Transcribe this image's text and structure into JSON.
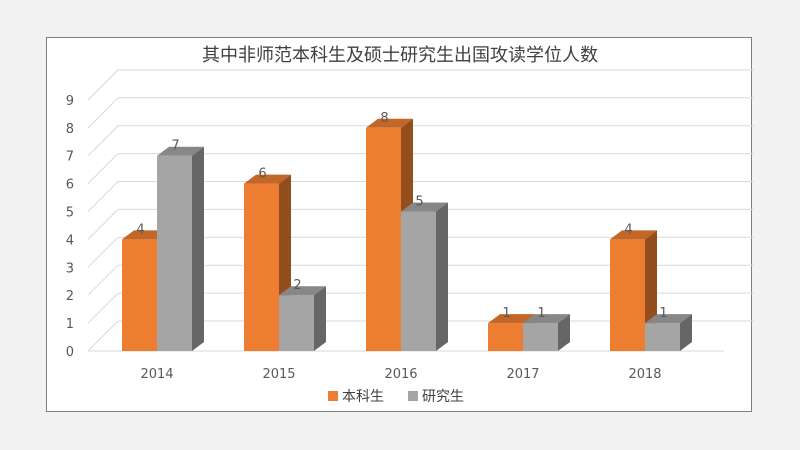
{
  "chart_data": {
    "type": "bar",
    "title": "其中非师范本科生及硕士研究生出国攻读学位人数",
    "categories": [
      "2014",
      "2015",
      "2016",
      "2017",
      "2018"
    ],
    "series": [
      {
        "name": "本科生",
        "values": [
          4,
          6,
          8,
          1,
          4
        ],
        "color": "#ed7d31"
      },
      {
        "name": "研究生",
        "values": [
          7,
          2,
          5,
          1,
          1
        ],
        "color": "#a5a5a5"
      }
    ],
    "ylim": [
      0,
      9
    ],
    "yticks": [
      0,
      1,
      2,
      3,
      4,
      5,
      6,
      7,
      8,
      9
    ],
    "grid": true,
    "legend_position": "bottom",
    "style": "3d-clustered-column"
  }
}
